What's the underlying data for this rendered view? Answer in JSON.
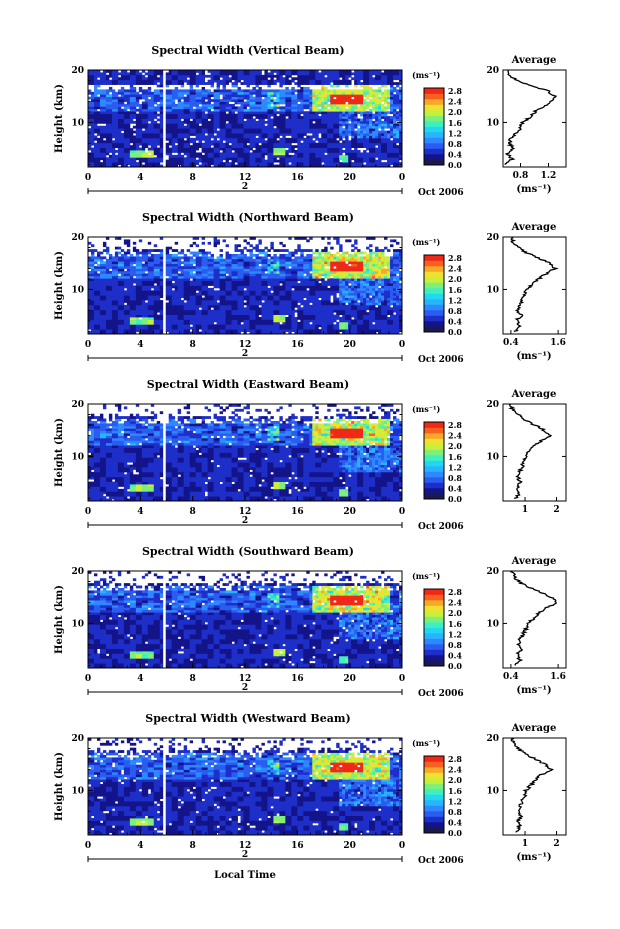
{
  "figure": {
    "x_axis_label": "Local Time",
    "date_label": "Oct 2006",
    "day_label": "2"
  },
  "colors": {
    "colormap": [
      "#1a1a50",
      "#14148a",
      "#1e2ec8",
      "#2a5cf0",
      "#2e88ff",
      "#28b4ff",
      "#22d8f0",
      "#3ef0c0",
      "#7ef07a",
      "#c8f03a",
      "#f0e030",
      "#f8a828",
      "#f86020",
      "#f02818"
    ]
  },
  "chart_data": [
    {
      "type": "heatmap",
      "title": "Spectral Width (Vertical Beam)",
      "xlabel": "",
      "ylabel": "Height (km)",
      "x_ticks": [
        "0",
        "4",
        "8",
        "12",
        "16",
        "20",
        "0"
      ],
      "xlim": [
        0,
        24
      ],
      "ylim": [
        1.5,
        20
      ],
      "y_ticks": [
        "20",
        "10"
      ],
      "colorbar": {
        "unit": "(ms⁻¹)",
        "ticks": [
          "0.0",
          "0.4",
          "0.8",
          "1.2",
          "1.6",
          "2.0",
          "2.4",
          "2.8"
        ],
        "range": [
          0.0,
          2.8
        ]
      },
      "average_profile": {
        "title": "Average",
        "xlabel": "(ms⁻¹)",
        "x_ticks": [
          "0.8",
          "1.2"
        ],
        "x_tick_values": [
          0.8,
          1.2
        ],
        "xlim": [
          0.55,
          1.45
        ],
        "y_ticks": [
          "20",
          "10"
        ],
        "heights": [
          2,
          3,
          4,
          5,
          6,
          7,
          8,
          9,
          10,
          11,
          12,
          13,
          14,
          15,
          16,
          17,
          18,
          19,
          20
        ],
        "values": [
          0.6,
          0.68,
          0.62,
          0.7,
          0.64,
          0.66,
          0.74,
          0.8,
          0.82,
          0.95,
          1.0,
          1.12,
          1.24,
          1.28,
          1.2,
          0.96,
          0.74,
          0.64,
          0.62
        ]
      }
    },
    {
      "type": "heatmap",
      "title": "Spectral Width (Northward Beam)",
      "xlabel": "",
      "ylabel": "Height (km)",
      "x_ticks": [
        "0",
        "4",
        "8",
        "12",
        "16",
        "20",
        "0"
      ],
      "xlim": [
        0,
        24
      ],
      "ylim": [
        1.5,
        20
      ],
      "y_ticks": [
        "20",
        "10"
      ],
      "colorbar": {
        "unit": "(ms⁻¹)",
        "ticks": [
          "0.0",
          "0.4",
          "0.8",
          "1.2",
          "1.6",
          "2.0",
          "2.4",
          "2.8"
        ],
        "range": [
          0.0,
          2.8
        ]
      },
      "average_profile": {
        "title": "Average",
        "xlabel": "(ms⁻¹)",
        "x_ticks": [
          "0.4",
          "1.6"
        ],
        "x_tick_values": [
          0.4,
          1.6
        ],
        "xlim": [
          0.2,
          1.8
        ],
        "y_ticks": [
          "20",
          "10"
        ],
        "heights": [
          2,
          3,
          4,
          5,
          6,
          7,
          8,
          9,
          10,
          11,
          12,
          13,
          14,
          15,
          16,
          17,
          18,
          19,
          20
        ],
        "values": [
          0.5,
          0.62,
          0.54,
          0.66,
          0.58,
          0.6,
          0.7,
          0.76,
          0.8,
          0.96,
          1.1,
          1.3,
          1.52,
          1.4,
          1.1,
          0.8,
          0.58,
          0.46,
          0.42
        ]
      }
    },
    {
      "type": "heatmap",
      "title": "Spectral Width (Eastward Beam)",
      "xlabel": "",
      "ylabel": "Height (km)",
      "x_ticks": [
        "0",
        "4",
        "8",
        "12",
        "16",
        "20",
        "0"
      ],
      "xlim": [
        0,
        24
      ],
      "ylim": [
        1.5,
        20
      ],
      "y_ticks": [
        "20",
        "10"
      ],
      "colorbar": {
        "unit": "(ms⁻¹)",
        "ticks": [
          "0.0",
          "0.4",
          "0.8",
          "1.2",
          "1.6",
          "2.0",
          "2.4",
          "2.8"
        ],
        "range": [
          0.0,
          2.8
        ]
      },
      "average_profile": {
        "title": "Average",
        "xlabel": "",
        "x_ticks": [
          "1",
          "2"
        ],
        "x_tick_values": [
          1,
          2
        ],
        "xlim": [
          0.3,
          2.3
        ],
        "y_ticks": [
          "20",
          "10"
        ],
        "heights": [
          2,
          3,
          4,
          5,
          6,
          7,
          8,
          9,
          10,
          11,
          12,
          13,
          14,
          15,
          16,
          17,
          18,
          19,
          20
        ],
        "values": [
          0.7,
          0.82,
          0.74,
          0.86,
          0.78,
          0.8,
          0.9,
          0.96,
          1.0,
          1.16,
          1.3,
          1.5,
          1.8,
          1.6,
          1.3,
          1.0,
          0.78,
          0.6,
          0.55
        ]
      }
    },
    {
      "type": "heatmap",
      "title": "Spectral Width (Southward Beam)",
      "xlabel": "",
      "ylabel": "Height (km)",
      "x_ticks": [
        "0",
        "4",
        "8",
        "12",
        "16",
        "20",
        "0"
      ],
      "xlim": [
        0,
        24
      ],
      "ylim": [
        1.5,
        20
      ],
      "y_ticks": [
        "20",
        "10"
      ],
      "colorbar": {
        "unit": "(ms⁻¹)",
        "ticks": [
          "0.0",
          "0.4",
          "0.8",
          "1.2",
          "1.6",
          "2.0",
          "2.4",
          "2.8"
        ],
        "range": [
          0.0,
          2.8
        ]
      },
      "average_profile": {
        "title": "Average",
        "xlabel": "(ms⁻¹)",
        "x_ticks": [
          "0.4",
          "1.6"
        ],
        "x_tick_values": [
          0.4,
          1.6
        ],
        "xlim": [
          0.2,
          1.8
        ],
        "y_ticks": [
          "20",
          "10"
        ],
        "heights": [
          2,
          3,
          4,
          5,
          6,
          7,
          8,
          9,
          10,
          11,
          12,
          13,
          14,
          15,
          16,
          17,
          18,
          19,
          20
        ],
        "values": [
          0.52,
          0.64,
          0.56,
          0.68,
          0.6,
          0.62,
          0.72,
          0.78,
          0.82,
          0.98,
          1.12,
          1.32,
          1.56,
          1.42,
          1.14,
          0.82,
          0.6,
          0.48,
          0.44
        ]
      }
    },
    {
      "type": "heatmap",
      "title": "Spectral Width (Westward Beam)",
      "xlabel": "",
      "ylabel": "Height (km)",
      "x_ticks": [
        "0",
        "4",
        "8",
        "12",
        "16",
        "20",
        "0"
      ],
      "xlim": [
        0,
        24
      ],
      "ylim": [
        1.5,
        20
      ],
      "y_ticks": [
        "20",
        "10"
      ],
      "colorbar": {
        "unit": "(ms⁻¹)",
        "ticks": [
          "0.0",
          "0.4",
          "0.8",
          "1.2",
          "1.6",
          "2.0",
          "2.4",
          "2.8"
        ],
        "range": [
          0.0,
          2.8
        ]
      },
      "average_profile": {
        "title": "Average",
        "xlabel": "(ms⁻¹)",
        "x_ticks": [
          "1",
          "2"
        ],
        "x_tick_values": [
          1,
          2
        ],
        "xlim": [
          0.3,
          2.3
        ],
        "y_ticks": [
          "20",
          "10"
        ],
        "heights": [
          2,
          3,
          4,
          5,
          6,
          7,
          8,
          9,
          10,
          11,
          12,
          13,
          14,
          15,
          16,
          17,
          18,
          19,
          20
        ],
        "values": [
          0.72,
          0.84,
          0.76,
          0.88,
          0.8,
          0.82,
          0.92,
          0.98,
          1.02,
          1.18,
          1.32,
          1.52,
          1.84,
          1.64,
          1.32,
          1.02,
          0.8,
          0.62,
          0.56
        ]
      }
    }
  ]
}
